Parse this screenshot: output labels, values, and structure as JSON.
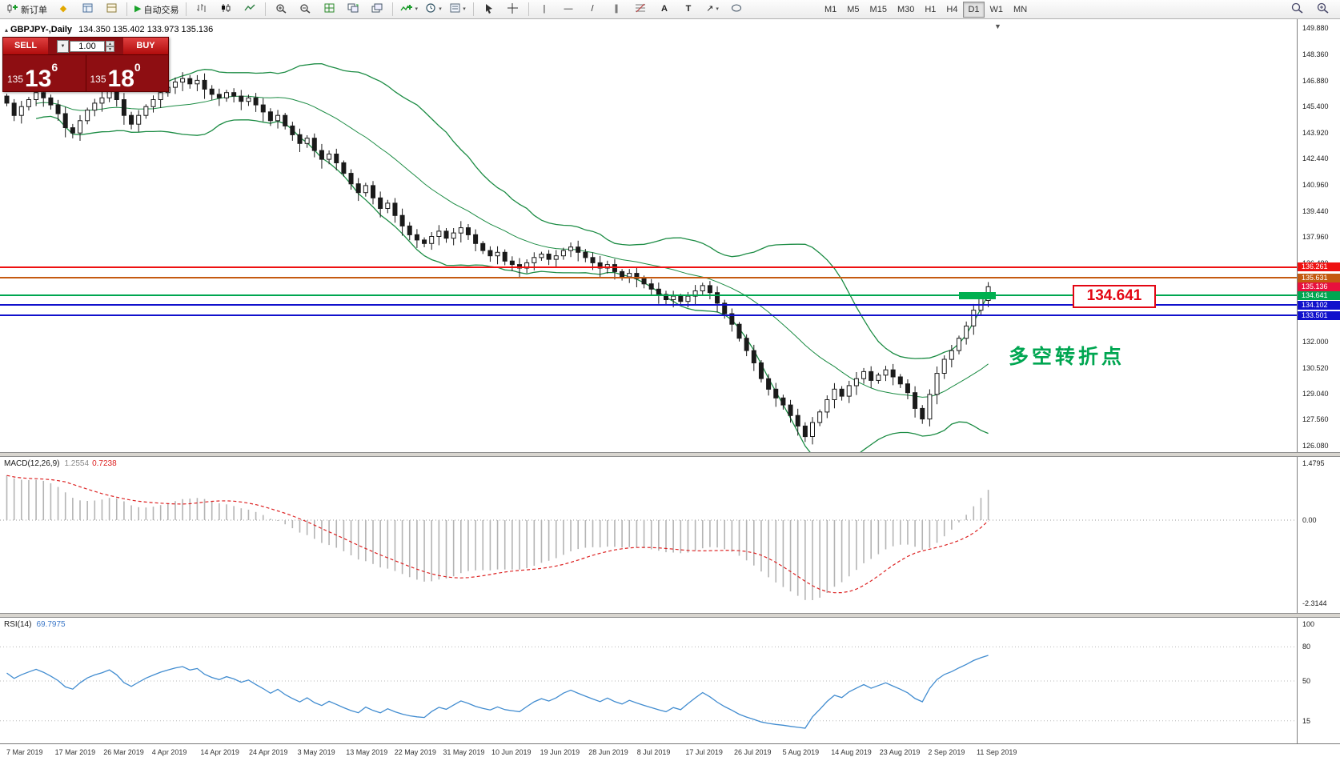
{
  "toolbar": {
    "new_order": "新订单",
    "auto_trading": "自动交易",
    "timeframes": [
      "M1",
      "M5",
      "M15",
      "M30",
      "H1",
      "H4",
      "D1",
      "W1",
      "MN"
    ],
    "active_timeframe": "D1"
  },
  "chart": {
    "symbol": "GBPJPY-,Daily",
    "ohlc": "134.350 135.402 133.973 135.136"
  },
  "trade_panel": {
    "sell_label": "SELL",
    "buy_label": "BUY",
    "volume": "1.00",
    "sell": {
      "prefix": "135",
      "big": "13",
      "sup": "6"
    },
    "buy": {
      "prefix": "135",
      "big": "18",
      "sup": "0"
    }
  },
  "annotations": {
    "turning_point": "多空转折点",
    "price_callout": "134.641"
  },
  "chart_data": {
    "type": "candlestick",
    "symbol": "GBPJPY-",
    "timeframe": "Daily",
    "title": "GBPJPY-,Daily 134.350 135.402 133.973 135.136",
    "ylim": [
      126.08,
      149.88
    ],
    "y_ticks": [
      "149.880",
      "148.360",
      "146.880",
      "145.400",
      "143.920",
      "142.440",
      "140.960",
      "139.440",
      "137.960",
      "136.480",
      "132.000",
      "130.520",
      "129.040",
      "127.560",
      "126.080"
    ],
    "x_labels": [
      "7 Mar 2019",
      "17 Mar 2019",
      "26 Mar 2019",
      "4 Apr 2019",
      "14 Apr 2019",
      "24 Apr 2019",
      "3 May 2019",
      "13 May 2019",
      "22 May 2019",
      "31 May 2019",
      "10 Jun 2019",
      "19 Jun 2019",
      "28 Jun 2019",
      "8 Jul 2019",
      "17 Jul 2019",
      "26 Jul 2019",
      "5 Aug 2019",
      "14 Aug 2019",
      "23 Aug 2019",
      "2 Sep 2019",
      "11 Sep 2019"
    ],
    "closes": [
      145.6,
      144.9,
      145.4,
      145.8,
      146.2,
      145.9,
      145.5,
      145.0,
      144.2,
      143.9,
      144.6,
      145.2,
      145.6,
      145.9,
      146.3,
      145.8,
      144.9,
      144.4,
      144.9,
      145.4,
      145.8,
      146.2,
      146.5,
      146.8,
      147.0,
      146.7,
      146.9,
      146.4,
      146.1,
      145.9,
      146.2,
      146.0,
      145.7,
      145.9,
      145.5,
      145.1,
      144.6,
      144.9,
      144.3,
      143.8,
      143.3,
      143.6,
      142.9,
      142.4,
      142.7,
      142.2,
      141.6,
      141.0,
      140.5,
      140.9,
      140.2,
      139.6,
      139.9,
      139.2,
      138.6,
      138.1,
      137.8,
      137.6,
      138.0,
      138.3,
      137.9,
      138.2,
      138.5,
      138.1,
      137.6,
      137.2,
      136.9,
      137.1,
      136.6,
      136.4,
      136.2,
      136.5,
      136.8,
      137.0,
      136.7,
      136.9,
      137.2,
      137.4,
      137.1,
      136.8,
      136.5,
      136.2,
      136.4,
      136.0,
      135.7,
      135.9,
      135.6,
      135.3,
      135.0,
      134.7,
      134.4,
      134.6,
      134.3,
      134.6,
      134.9,
      135.2,
      134.8,
      134.2,
      133.6,
      133.0,
      132.2,
      131.5,
      130.8,
      129.9,
      129.3,
      128.8,
      128.4,
      127.8,
      127.2,
      126.6,
      127.4,
      128.0,
      128.7,
      129.3,
      128.9,
      129.5,
      129.9,
      130.3,
      129.8,
      130.1,
      130.4,
      130.0,
      129.6,
      129.1,
      128.2,
      127.6,
      129.0,
      130.2,
      131.0,
      131.5,
      132.2,
      132.9,
      133.8,
      134.5,
      135.136
    ],
    "last_candle": {
      "o": 134.35,
      "h": 135.402,
      "l": 133.973,
      "c": 135.136
    },
    "bollinger": {
      "period": 20,
      "deviation": 2,
      "color": "#1c8c44"
    },
    "levels": [
      {
        "price": 136.261,
        "label": "136.261",
        "color": "#ee1111"
      },
      {
        "price": 135.631,
        "label": "135.631",
        "color": "#c55a11"
      },
      {
        "price": 134.641,
        "label": "134.641",
        "color": "#00a651"
      },
      {
        "price": 134.102,
        "label": "134.102",
        "color": "#1111cc"
      },
      {
        "price": 133.501,
        "label": "133.501",
        "color": "#1111cc"
      }
    ],
    "current_price": {
      "label": "135.136",
      "color": "#e8113d"
    },
    "macd": {
      "label": "MACD(12,26,9)",
      "value_main": "1.2554",
      "value_signal": "0.7238",
      "scale": [
        "1.4795",
        "0.00",
        "-2.3144"
      ]
    },
    "rsi": {
      "label": "RSI(14)",
      "value": "69.7975",
      "scale": [
        "100",
        "80",
        "50",
        "15"
      ],
      "levels": [
        80,
        50,
        15
      ]
    }
  }
}
